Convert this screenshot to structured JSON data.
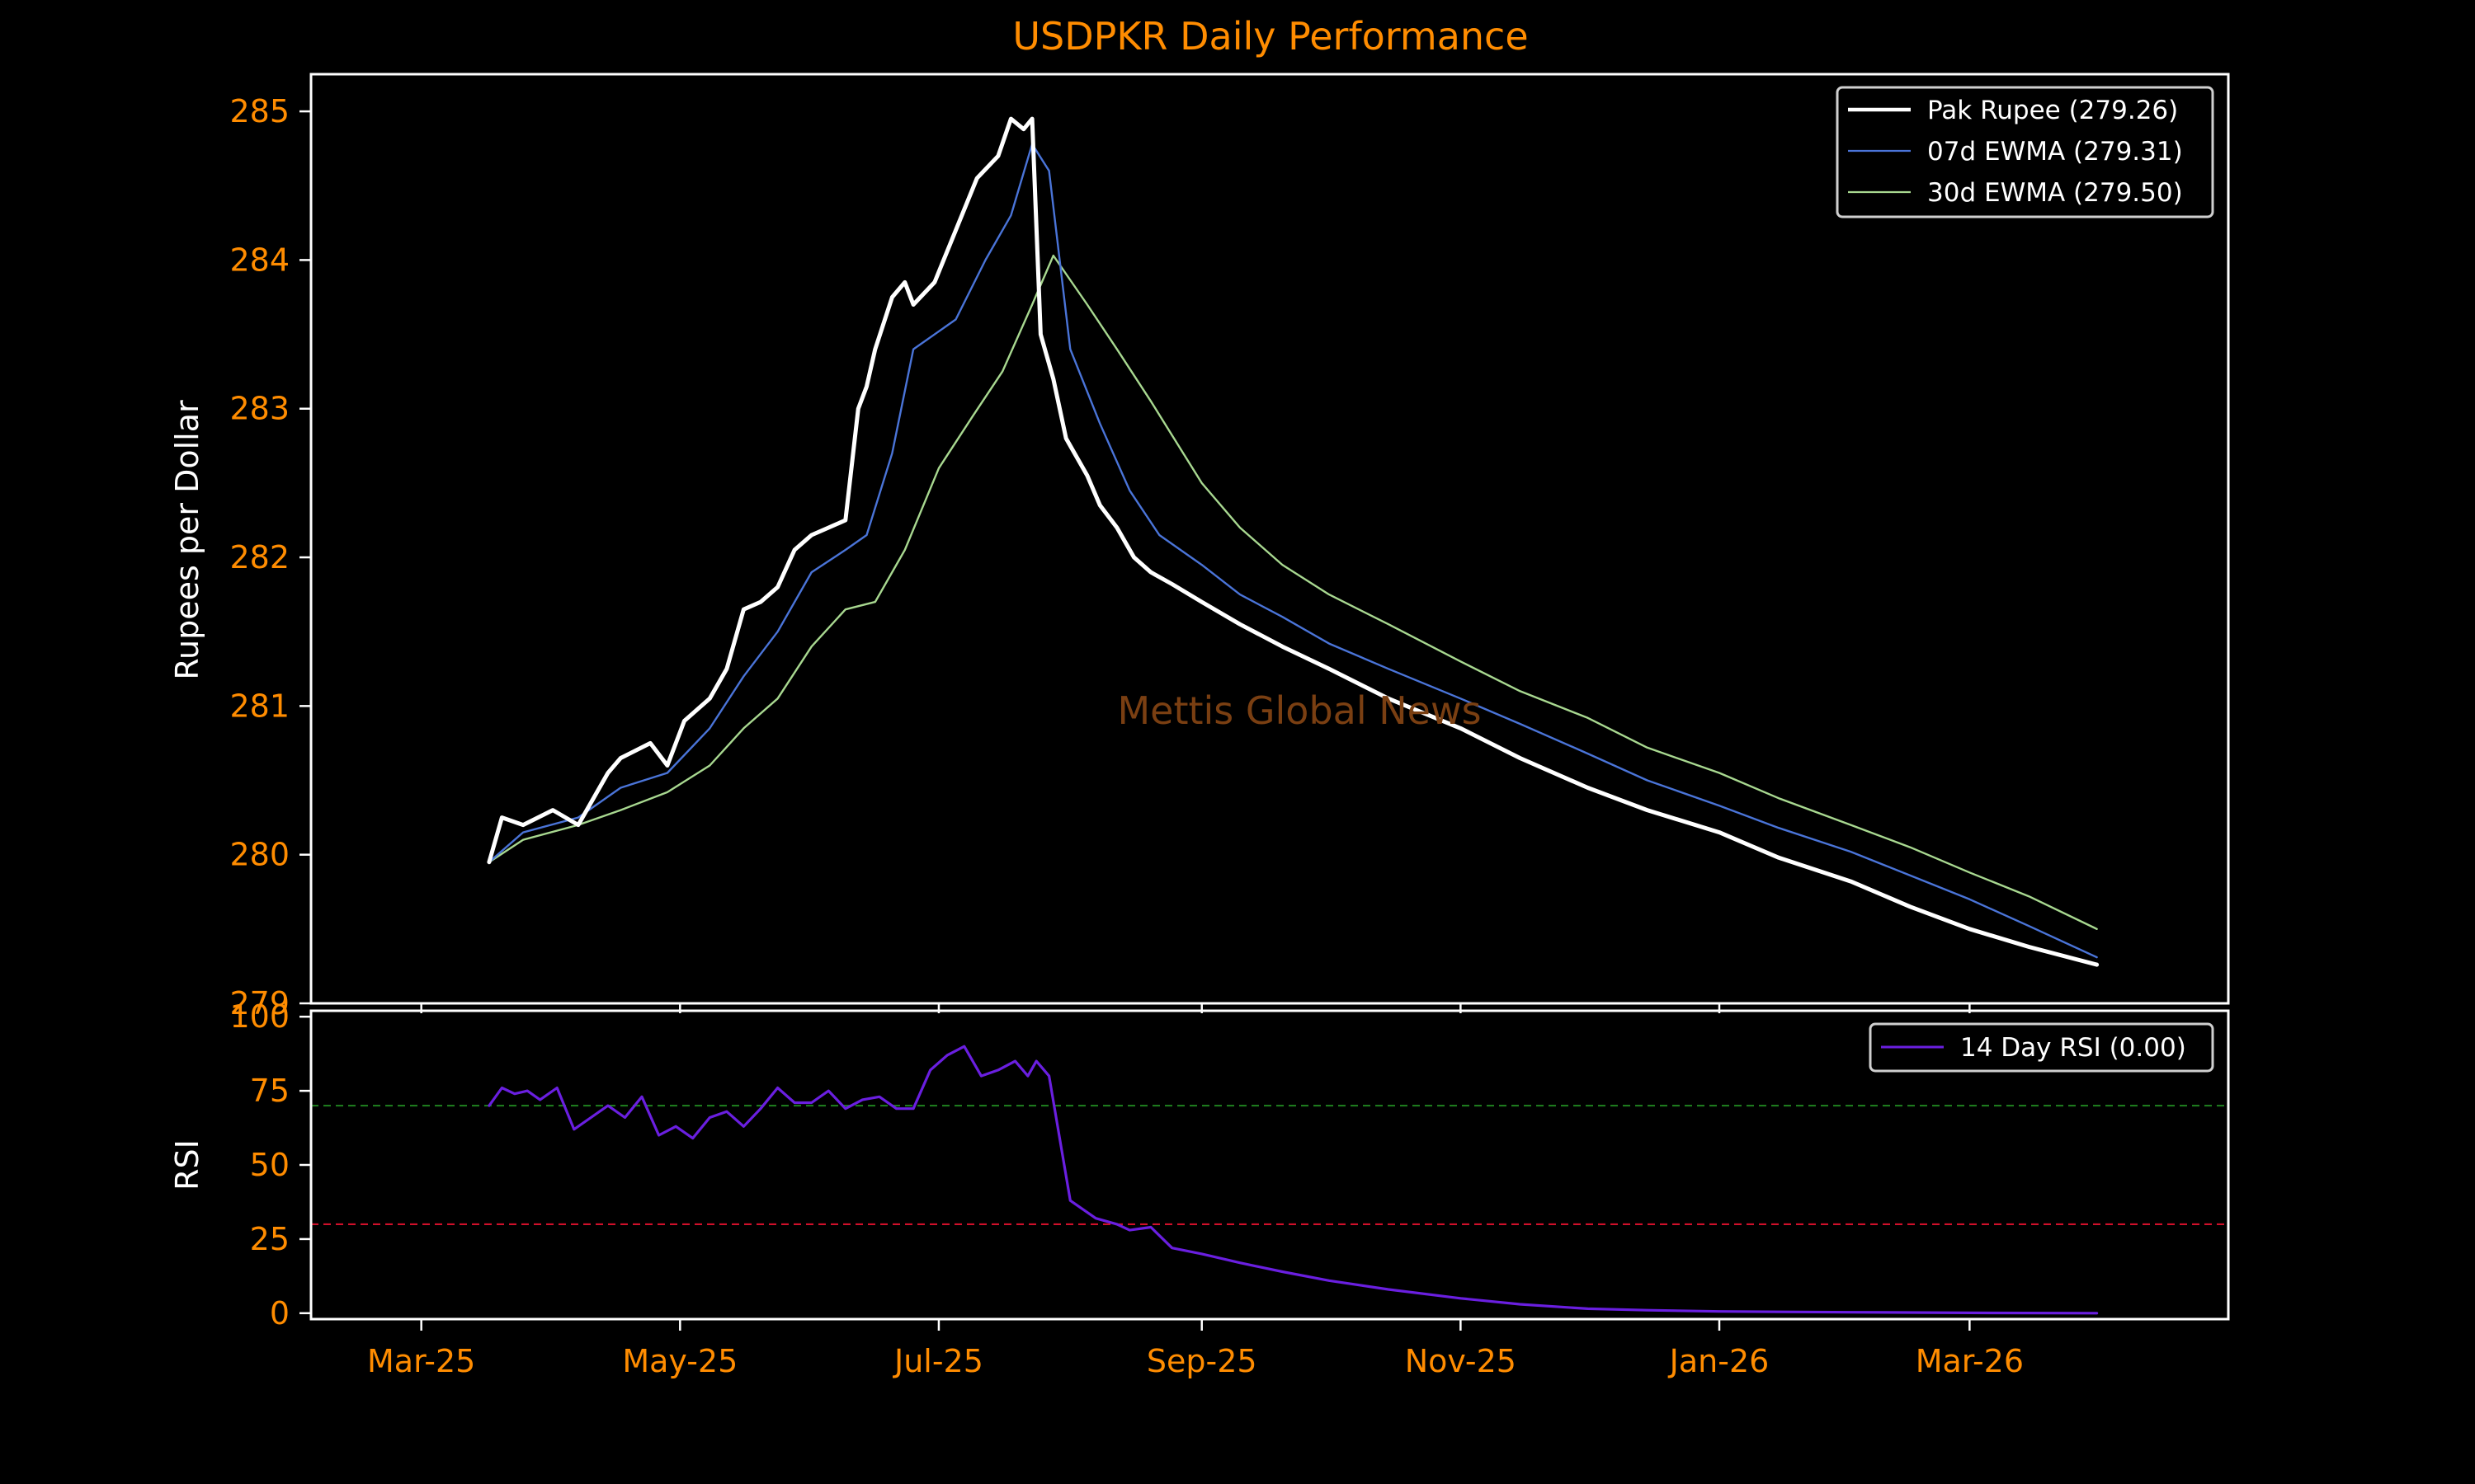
{
  "colors": {
    "background": "#000000",
    "title": "#ff8c00",
    "tick_labels": "#ff8c00",
    "rupee": "#ffffff",
    "ewma7": "#4a74d8",
    "ewma30": "#a8d890",
    "rsi": "#6a1fe0",
    "overbought": "#1d7a1d",
    "oversold": "#d0102a",
    "watermark": "#7a3f12"
  },
  "watermark": "Mettis Global News",
  "chart_data": [
    {
      "type": "line",
      "title": "USDPKR Daily Performance",
      "xlabel": "",
      "ylabel": "Rupees per Dollar",
      "ylim": [
        279,
        285.25
      ],
      "yticks": [
        279,
        280,
        281,
        282,
        283,
        284,
        285
      ],
      "xticks": [
        "Mar-25",
        "May-25",
        "Jul-25",
        "Sep-25",
        "Nov-25",
        "Jan-26",
        "Mar-26"
      ],
      "grid": false,
      "legend_position": "top-right",
      "x_start": "2025-03-17",
      "x_end": "2026-03-31",
      "series": [
        {
          "name": "Pak Rupee (279.26)",
          "key": "rupee",
          "x": [
            "2025-03-17",
            "2025-03-20",
            "2025-03-25",
            "2025-04-01",
            "2025-04-07",
            "2025-04-14",
            "2025-04-17",
            "2025-04-24",
            "2025-04-28",
            "2025-05-02",
            "2025-05-08",
            "2025-05-12",
            "2025-05-16",
            "2025-05-20",
            "2025-05-24",
            "2025-05-28",
            "2025-06-01",
            "2025-06-05",
            "2025-06-09",
            "2025-06-12",
            "2025-06-14",
            "2025-06-16",
            "2025-06-20",
            "2025-06-23",
            "2025-06-25",
            "2025-06-30",
            "2025-07-05",
            "2025-07-10",
            "2025-07-15",
            "2025-07-18",
            "2025-07-21",
            "2025-07-23",
            "2025-07-25",
            "2025-07-28",
            "2025-07-31",
            "2025-08-05",
            "2025-08-08",
            "2025-08-12",
            "2025-08-16",
            "2025-08-20",
            "2025-08-25",
            "2025-09-01",
            "2025-09-10",
            "2025-09-20",
            "2025-10-01",
            "2025-10-15",
            "2025-11-01",
            "2025-11-15",
            "2025-12-01",
            "2025-12-15",
            "2026-01-01",
            "2026-01-15",
            "2026-02-01",
            "2026-02-15",
            "2026-03-01",
            "2026-03-15",
            "2026-03-31"
          ],
          "values": [
            279.95,
            280.25,
            280.2,
            280.3,
            280.2,
            280.55,
            280.65,
            280.75,
            280.6,
            280.9,
            281.05,
            281.25,
            281.65,
            281.7,
            281.8,
            282.05,
            282.15,
            282.2,
            282.25,
            283.0,
            283.15,
            283.4,
            283.75,
            283.85,
            283.7,
            283.85,
            284.2,
            284.55,
            284.7,
            284.95,
            284.88,
            284.95,
            283.5,
            283.2,
            282.8,
            282.55,
            282.35,
            282.2,
            282.0,
            281.9,
            281.82,
            281.7,
            281.55,
            281.4,
            281.25,
            281.05,
            280.85,
            280.65,
            280.45,
            280.3,
            280.15,
            279.98,
            279.82,
            279.65,
            279.5,
            279.38,
            279.26
          ]
        },
        {
          "name": "07d EWMA (279.31)",
          "key": "ewma7",
          "x": [
            "2025-03-17",
            "2025-03-25",
            "2025-04-07",
            "2025-04-17",
            "2025-04-28",
            "2025-05-08",
            "2025-05-16",
            "2025-05-24",
            "2025-06-01",
            "2025-06-09",
            "2025-06-14",
            "2025-06-20",
            "2025-06-25",
            "2025-07-05",
            "2025-07-12",
            "2025-07-18",
            "2025-07-23",
            "2025-07-27",
            "2025-08-01",
            "2025-08-08",
            "2025-08-15",
            "2025-08-22",
            "2025-09-01",
            "2025-09-10",
            "2025-09-20",
            "2025-10-01",
            "2025-10-15",
            "2025-11-01",
            "2025-11-15",
            "2025-12-01",
            "2025-12-15",
            "2026-01-01",
            "2026-01-15",
            "2026-02-01",
            "2026-02-15",
            "2026-03-01",
            "2026-03-15",
            "2026-03-31"
          ],
          "values": [
            279.95,
            280.15,
            280.25,
            280.45,
            280.55,
            280.85,
            281.2,
            281.5,
            281.9,
            282.05,
            282.15,
            282.7,
            283.4,
            283.6,
            284.0,
            284.3,
            284.78,
            284.6,
            283.4,
            282.9,
            282.45,
            282.15,
            281.95,
            281.75,
            281.6,
            281.42,
            281.25,
            281.05,
            280.88,
            280.68,
            280.5,
            280.33,
            280.18,
            280.02,
            279.86,
            279.7,
            279.52,
            279.31
          ]
        },
        {
          "name": "30d EWMA (279.50)",
          "key": "ewma30",
          "x": [
            "2025-03-17",
            "2025-03-25",
            "2025-04-07",
            "2025-04-17",
            "2025-04-28",
            "2025-05-08",
            "2025-05-16",
            "2025-05-24",
            "2025-06-01",
            "2025-06-09",
            "2025-06-16",
            "2025-06-23",
            "2025-07-01",
            "2025-07-09",
            "2025-07-16",
            "2025-07-23",
            "2025-07-28",
            "2025-08-05",
            "2025-08-12",
            "2025-08-20",
            "2025-09-01",
            "2025-09-10",
            "2025-09-20",
            "2025-10-01",
            "2025-10-15",
            "2025-11-01",
            "2025-11-15",
            "2025-12-01",
            "2025-12-15",
            "2026-01-01",
            "2026-01-15",
            "2026-02-01",
            "2026-02-15",
            "2026-03-01",
            "2026-03-15",
            "2026-03-31"
          ],
          "values": [
            279.95,
            280.1,
            280.2,
            280.3,
            280.42,
            280.6,
            280.85,
            281.05,
            281.4,
            281.65,
            281.7,
            282.05,
            282.6,
            282.95,
            283.25,
            283.7,
            284.03,
            283.7,
            283.4,
            283.05,
            282.5,
            282.2,
            281.95,
            281.75,
            281.55,
            281.3,
            281.1,
            280.92,
            280.72,
            280.55,
            280.38,
            280.2,
            280.05,
            279.88,
            279.72,
            279.5
          ]
        }
      ]
    },
    {
      "type": "line",
      "title": "",
      "xlabel": "",
      "ylabel": "RSI",
      "ylim": [
        -2,
        102
      ],
      "yticks": [
        0,
        25,
        50,
        75,
        100
      ],
      "xticks": [
        "Mar-25",
        "May-25",
        "Jul-25",
        "Sep-25",
        "Nov-25",
        "Jan-26",
        "Mar-26"
      ],
      "grid": false,
      "legend_position": "top-right",
      "reference_lines": [
        70,
        30
      ],
      "series": [
        {
          "name": "14 Day RSI (0.00)",
          "key": "rsi",
          "x": [
            "2025-03-17",
            "2025-03-20",
            "2025-03-23",
            "2025-03-26",
            "2025-03-29",
            "2025-04-02",
            "2025-04-06",
            "2025-04-10",
            "2025-04-14",
            "2025-04-18",
            "2025-04-22",
            "2025-04-26",
            "2025-04-30",
            "2025-05-04",
            "2025-05-08",
            "2025-05-12",
            "2025-05-16",
            "2025-05-20",
            "2025-05-24",
            "2025-05-28",
            "2025-06-01",
            "2025-06-05",
            "2025-06-09",
            "2025-06-13",
            "2025-06-17",
            "2025-06-21",
            "2025-06-25",
            "2025-06-29",
            "2025-07-03",
            "2025-07-07",
            "2025-07-11",
            "2025-07-15",
            "2025-07-19",
            "2025-07-22",
            "2025-07-24",
            "2025-07-27",
            "2025-08-01",
            "2025-08-07",
            "2025-08-12",
            "2025-08-15",
            "2025-08-20",
            "2025-08-25",
            "2025-09-01",
            "2025-09-10",
            "2025-09-20",
            "2025-10-01",
            "2025-10-15",
            "2025-11-01",
            "2025-11-15",
            "2025-12-01",
            "2025-12-15",
            "2026-01-01",
            "2026-02-01",
            "2026-03-01",
            "2026-03-31"
          ],
          "values": [
            70,
            76,
            74,
            75,
            72,
            76,
            62,
            66,
            70,
            66,
            73,
            60,
            63,
            59,
            66,
            68,
            63,
            69,
            76,
            71,
            71,
            75,
            69,
            72,
            73,
            69,
            69,
            82,
            87,
            90,
            80,
            82,
            85,
            80,
            85,
            80,
            38,
            32,
            30,
            28,
            29,
            22,
            20,
            17,
            14,
            11,
            8,
            5,
            3,
            1.5,
            1,
            0.6,
            0.3,
            0.1,
            0.0
          ]
        }
      ]
    }
  ]
}
